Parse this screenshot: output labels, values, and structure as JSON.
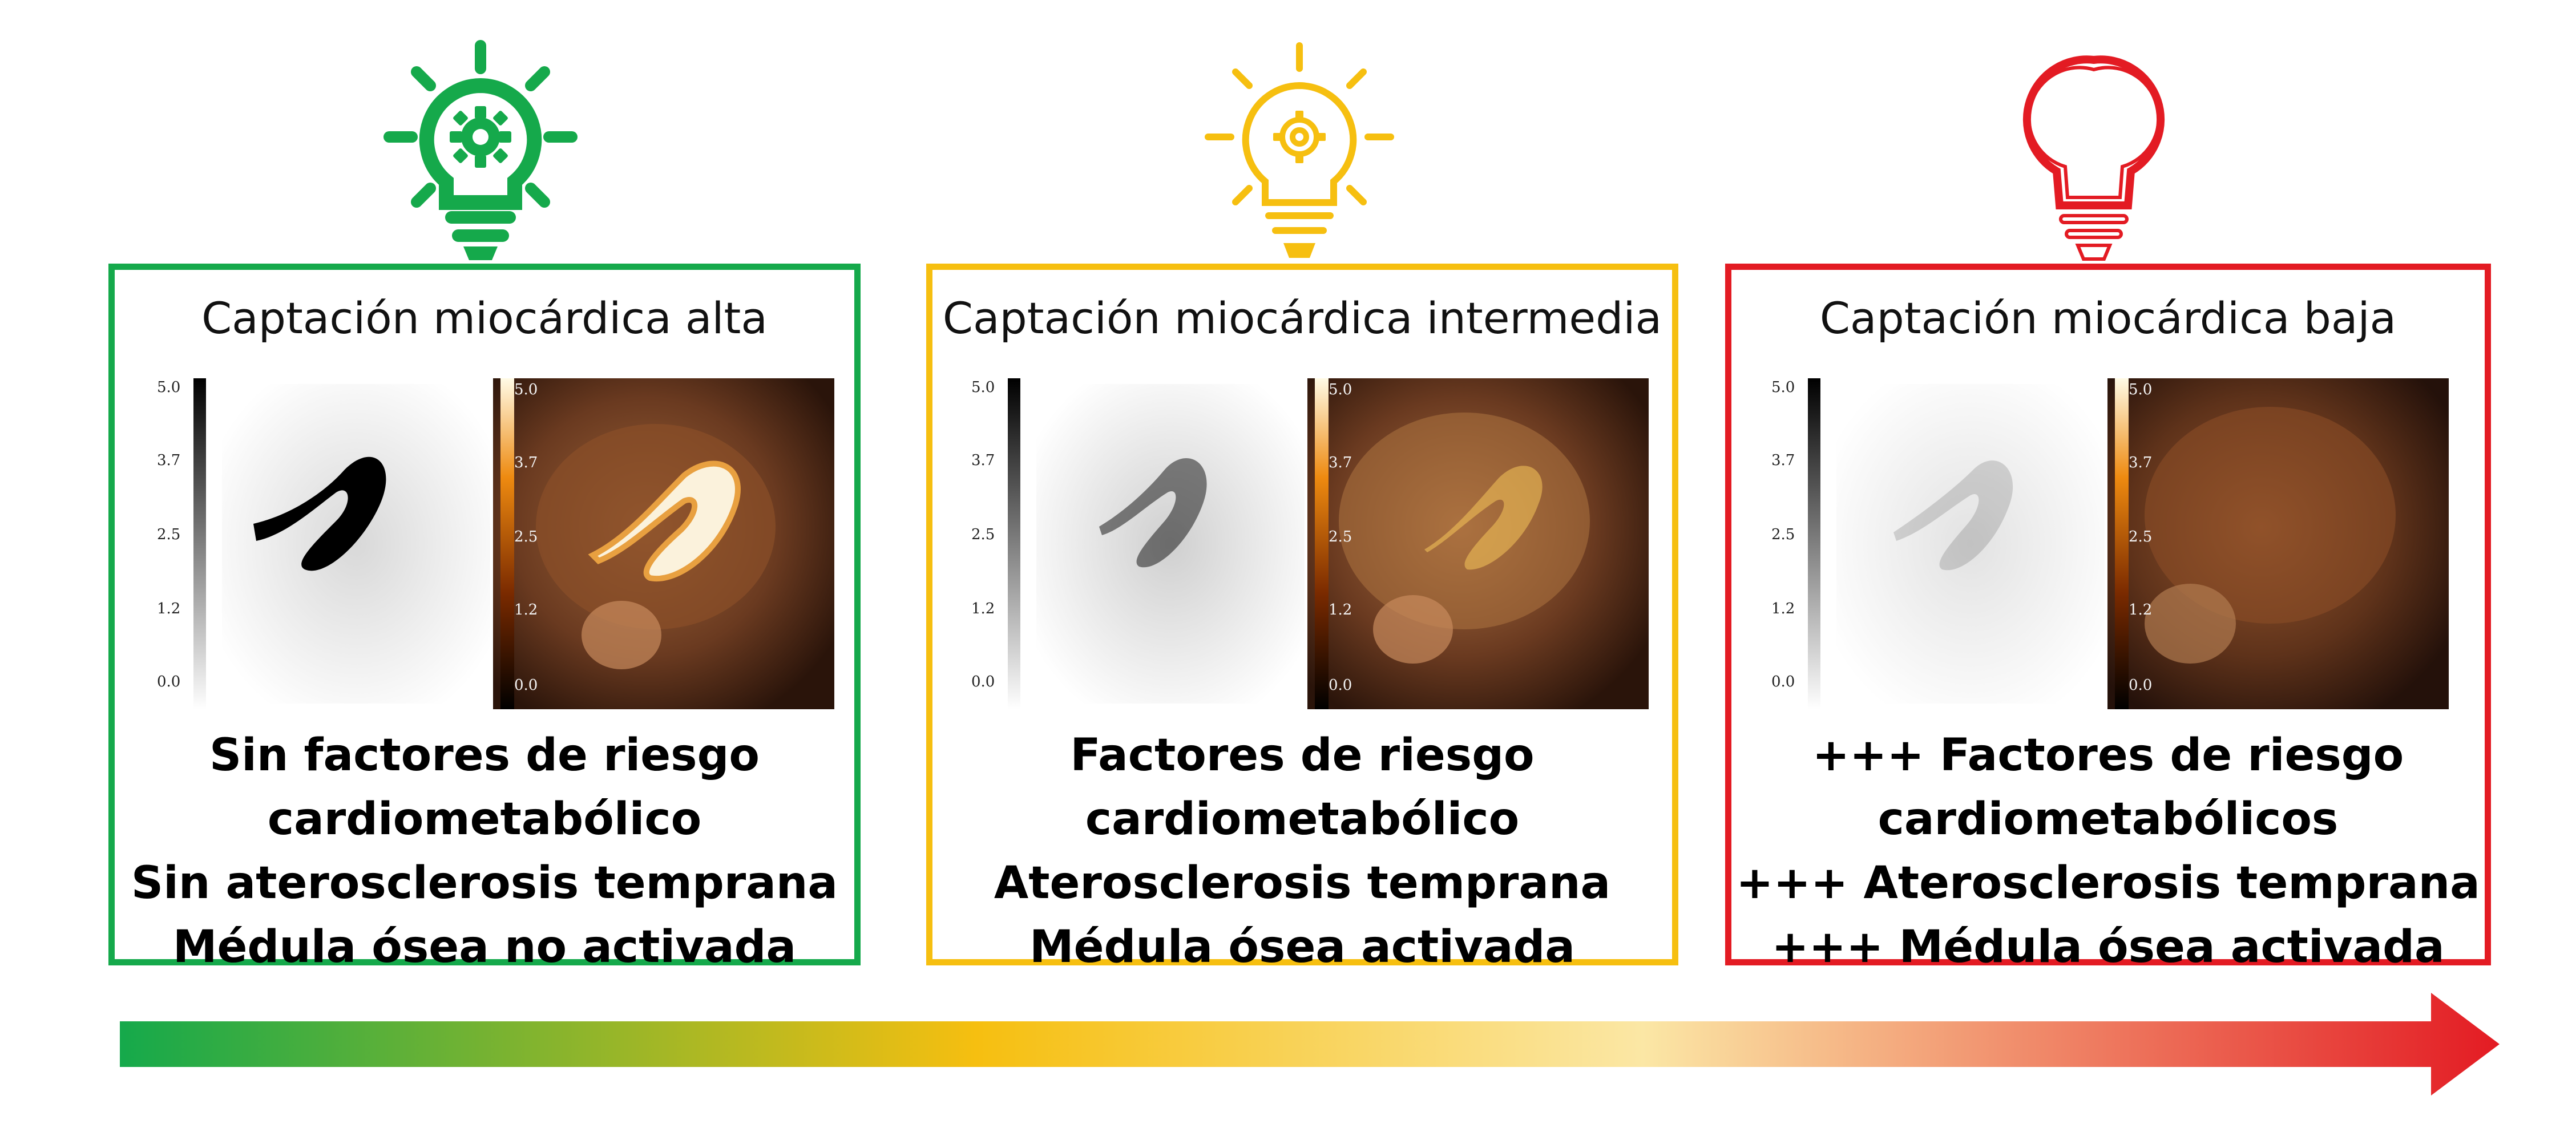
{
  "colors": {
    "high": "#15a94b",
    "mid": "#f6bf10",
    "low": "#e31b23",
    "gradient_light": "#fbe7a5"
  },
  "panels": [
    {
      "level": "high",
      "bulb_icon": "lightbulb-gear-icon",
      "title": "Captación miocárdica alta",
      "pet_ticks": [
        "5.0",
        "3.7",
        "2.5",
        "1.2",
        "0.0"
      ],
      "fusion_ticks": [
        "5.0",
        "3.7",
        "2.5",
        "1.2",
        "0.0"
      ],
      "uptake": 1.0,
      "notes": [
        "Sin factores de riesgo",
        "cardiometabólico",
        "Sin aterosclerosis temprana",
        "Médula ósea no activada"
      ]
    },
    {
      "level": "mid",
      "bulb_icon": "lightbulb-gear-icon",
      "title": "Captación miocárdica intermedia",
      "pet_ticks": [
        "5.0",
        "3.7",
        "2.5",
        "1.2",
        "0.0"
      ],
      "fusion_ticks": [
        "5.0",
        "3.7",
        "2.5",
        "1.2",
        "0.0"
      ],
      "uptake": 0.45,
      "notes": [
        "Factores de riesgo",
        "cardiometabólico",
        "Aterosclerosis temprana",
        "Médula ósea activada"
      ]
    },
    {
      "level": "low",
      "bulb_icon": "lightbulb-off-icon",
      "title": "Captación miocárdica baja",
      "pet_ticks": [
        "5.0",
        "3.7",
        "2.5",
        "1.2",
        "0.0"
      ],
      "fusion_ticks": [
        "5.0",
        "3.7",
        "2.5",
        "1.2",
        "0.0"
      ],
      "uptake": 0.08,
      "notes": [
        "+++  Factores de riesgo",
        "cardiometabólicos",
        "+++  Aterosclerosis temprana",
        "+++  Médula ósea activada"
      ]
    }
  ]
}
